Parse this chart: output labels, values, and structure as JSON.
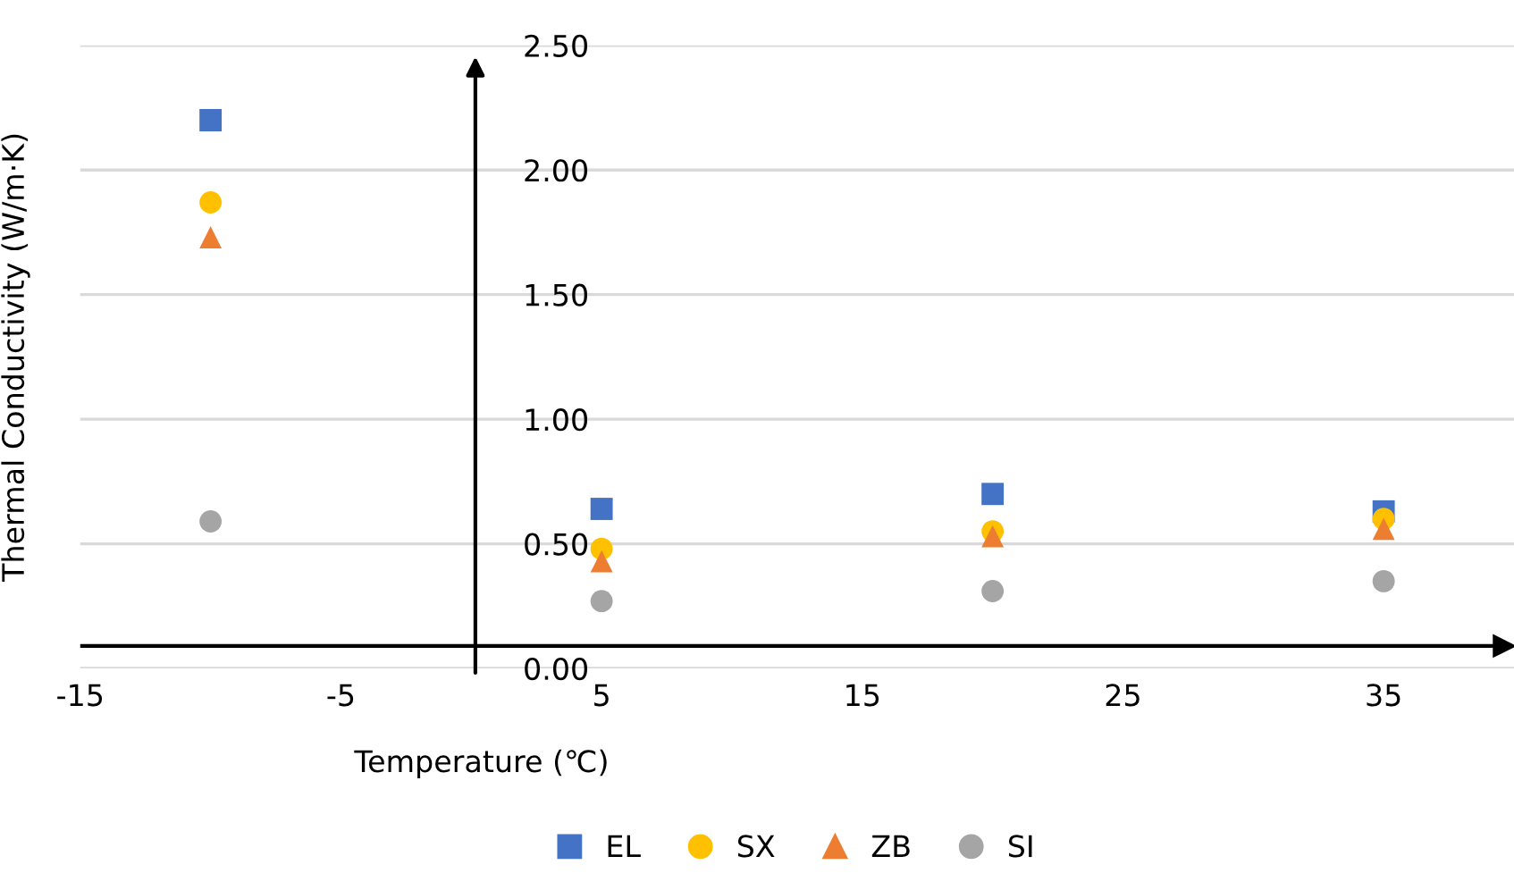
{
  "chart_data": {
    "type": "scatter",
    "xlabel": "Temperature (℃)",
    "ylabel": "Thermal Conductivity (W/m·K)",
    "x": [
      -10,
      5,
      20,
      35
    ],
    "series": [
      {
        "name": "EL",
        "color": "#4472c4",
        "marker": "square",
        "values": [
          2.2,
          0.64,
          0.7,
          0.63
        ]
      },
      {
        "name": "SX",
        "color": "#ffc000",
        "marker": "circle",
        "values": [
          1.87,
          0.48,
          0.55,
          0.6
        ]
      },
      {
        "name": "ZB",
        "color": "#ed7d31",
        "marker": "triangle",
        "values": [
          1.73,
          0.43,
          0.53,
          0.56
        ]
      },
      {
        "name": "SI",
        "color": "#a5a5a5",
        "marker": "circle",
        "values": [
          0.59,
          0.27,
          0.31,
          0.35
        ]
      }
    ],
    "xlim": [
      -15,
      40
    ],
    "xticks": [
      -15,
      -5,
      5,
      15,
      25,
      35
    ],
    "ylim": [
      0,
      2.5
    ],
    "yticks": [
      {
        "value": 0,
        "label": "0.00"
      },
      {
        "value": 0.5,
        "label": "0.50"
      },
      {
        "value": 1,
        "label": "1.00"
      },
      {
        "value": 1.5,
        "label": "1.50"
      },
      {
        "value": 2,
        "label": "2.00"
      },
      {
        "value": 2.5,
        "label": "2.50"
      }
    ],
    "ref_lines": [
      {
        "axis": "y",
        "value": 0.09,
        "color": "#000000"
      }
    ],
    "grid": "y",
    "legend": "bottom"
  }
}
